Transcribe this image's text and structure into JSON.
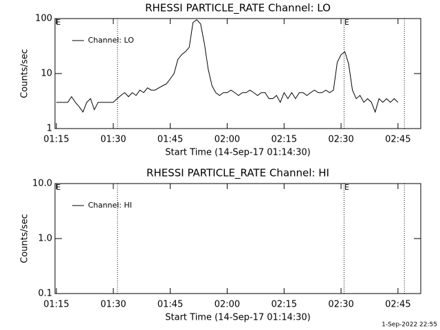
{
  "chart_data": [
    {
      "type": "line",
      "title": "RHESSI PARTICLE_RATE Channel: LO",
      "x_label": "Start Time (14-Sep-17 01:14:30)",
      "y_label": "Counts/sec",
      "log_y": true,
      "xlim": [
        74.64,
        171
      ],
      "ylim": [
        1,
        100
      ],
      "xticks": [
        {
          "value": 75,
          "label": "01:15"
        },
        {
          "value": 90,
          "label": "01:30"
        },
        {
          "value": 105,
          "label": "01:45"
        },
        {
          "value": 120,
          "label": "02:00"
        },
        {
          "value": 135,
          "label": "02:15"
        },
        {
          "value": 150,
          "label": "02:30"
        },
        {
          "value": 165,
          "label": "02:45"
        }
      ],
      "yticks": [
        1,
        10,
        100
      ],
      "dotted_lines": [
        91.1,
        150.8,
        166.7
      ],
      "annotations": [
        {
          "text": "E",
          "x": 74.9
        },
        {
          "text": "E",
          "x": 150.9
        }
      ],
      "legend": "upper left",
      "x": [
        75,
        76,
        77,
        78,
        79,
        80,
        81,
        82,
        83,
        84,
        85,
        86,
        87,
        88,
        89,
        90,
        91,
        92,
        93,
        94,
        95,
        96,
        97,
        98,
        99,
        100,
        101,
        102,
        103,
        104,
        105,
        106,
        107,
        108,
        109,
        110,
        111,
        112,
        113,
        114,
        115,
        116,
        117,
        118,
        119,
        120,
        121,
        122,
        123,
        124,
        125,
        126,
        127,
        128,
        129,
        130,
        131,
        132,
        133,
        134,
        135,
        136,
        137,
        138,
        139,
        140,
        141,
        142,
        143,
        144,
        145,
        146,
        147,
        148,
        149,
        150,
        151,
        152,
        153,
        154,
        155,
        156,
        157,
        158,
        159,
        160,
        161,
        162,
        163,
        164,
        165
      ],
      "series": [
        {
          "name": "Channel: LO",
          "color": "#000000",
          "values": [
            3,
            3,
            3,
            3,
            3.8,
            3,
            2.5,
            2,
            3,
            3.5,
            2.2,
            3,
            3,
            3,
            3,
            3,
            3.5,
            4,
            4.5,
            3.8,
            4.5,
            4,
            5,
            4.5,
            5.5,
            5,
            5,
            5.5,
            6,
            6.5,
            8,
            10,
            18,
            22,
            25,
            30,
            85,
            95,
            80,
            35,
            12,
            6,
            4.5,
            4,
            4.5,
            4.5,
            5,
            4.5,
            4,
            4.5,
            4.5,
            5,
            4.5,
            4,
            4.5,
            4.5,
            3.5,
            3.5,
            4,
            3,
            4.5,
            3.5,
            4.5,
            3.5,
            4.5,
            4.5,
            4,
            4.5,
            5,
            4.5,
            4.5,
            5,
            4.5,
            5,
            16,
            22,
            25,
            15,
            5,
            3.5,
            4,
            3,
            3.5,
            3,
            2,
            3.5,
            3,
            3.5,
            3,
            3.5,
            3
          ]
        }
      ]
    },
    {
      "type": "line",
      "title": "RHESSI PARTICLE_RATE Channel: HI",
      "x_label": "Start Time (14-Sep-17 01:14:30)",
      "y_label": "Counts/sec",
      "log_y": true,
      "xlim": [
        74.64,
        171
      ],
      "ylim": [
        0.1,
        10
      ],
      "xticks": [
        {
          "value": 75,
          "label": "01:15"
        },
        {
          "value": 90,
          "label": "01:30"
        },
        {
          "value": 105,
          "label": "01:45"
        },
        {
          "value": 120,
          "label": "02:00"
        },
        {
          "value": 135,
          "label": "02:15"
        },
        {
          "value": 150,
          "label": "02:30"
        },
        {
          "value": 165,
          "label": "02:45"
        }
      ],
      "yticks": [
        0.1,
        {
          "value": 1,
          "label": "1.0"
        },
        {
          "value": 10,
          "label": "10.0"
        }
      ],
      "dotted_lines": [
        91.1,
        150.8,
        166.7
      ],
      "annotations": [
        {
          "text": "E",
          "x": 74.9
        },
        {
          "text": "E",
          "x": 150.9
        }
      ],
      "legend": "upper left",
      "series": [
        {
          "name": "Channel: HI",
          "color": "#000000"
        }
      ]
    }
  ],
  "footer": "1-Sep-2022 22:55"
}
